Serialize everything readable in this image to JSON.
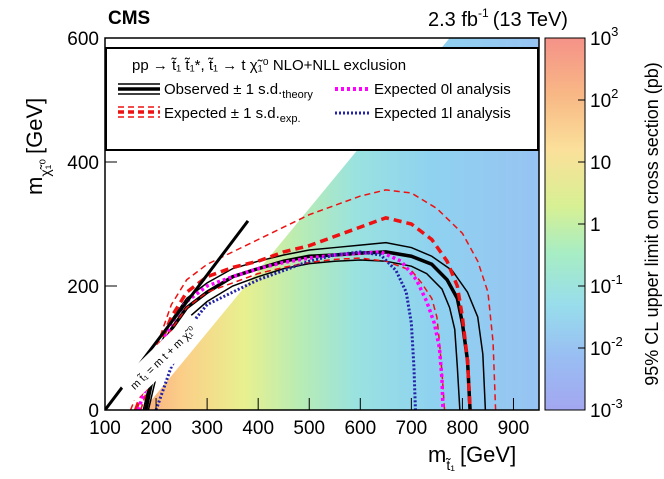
{
  "chart_data": {
    "type": "heatmap",
    "experiment": "CMS",
    "lumi_prefix": "2.3 fb",
    "lumi_exp": "-1",
    "lumi_suffix": "(13 TeV)",
    "xlabel": "m",
    "xlabel_sub": "t̃₁",
    "xlabel_unit": "[GeV]",
    "ylabel": "m",
    "ylabel_sub": "χ̃₁⁰",
    "ylabel_unit": "[GeV]",
    "xlim": [
      100,
      950
    ],
    "ylim": [
      0,
      600
    ],
    "xticks": [
      "100",
      "200",
      "300",
      "400",
      "500",
      "600",
      "700",
      "800",
      "900"
    ],
    "yticks": [
      "0",
      "200",
      "400",
      "600"
    ],
    "zlabel": "95% CL upper limit on cross section (pb)",
    "zscale": "log",
    "zlim": [
      0.001,
      1000
    ],
    "zticks": [
      {
        "base": "10",
        "exp": "3"
      },
      {
        "base": "10",
        "exp": "2"
      },
      {
        "base": "10",
        "exp": ""
      },
      {
        "base": "1",
        "exp": ""
      },
      {
        "base": "10",
        "exp": "-1"
      },
      {
        "base": "10",
        "exp": "-2"
      },
      {
        "base": "10",
        "exp": "-3"
      }
    ],
    "diagonal_label": "m t̃₁ = m t + m χ̃₁⁰",
    "legend_title": "pp → t̃₁ t̃₁*, t̃₁ → t χ̃₁⁰  NLO+NLL exclusion",
    "legend": [
      {
        "label": "Observed ± 1 s.d.",
        "sub": "theory",
        "color": "#000000"
      },
      {
        "label": "Expected 0l analysis",
        "sub": "",
        "color": "#ff00ff"
      },
      {
        "label": "Expected ± 1 s.d.",
        "sub": "exp.",
        "color": "#ee1111"
      },
      {
        "label": "Expected 1l analysis",
        "sub": "",
        "color": "#2222aa"
      }
    ],
    "series": [
      {
        "name": "Observed",
        "x": [
          180,
          200,
          230,
          260,
          300,
          350,
          400,
          450,
          500,
          550,
          600,
          650,
          700,
          740,
          770,
          790,
          800,
          810,
          815
        ],
        "y": [
          0,
          80,
          130,
          165,
          190,
          215,
          228,
          240,
          248,
          250,
          253,
          255,
          248,
          235,
          210,
          180,
          140,
          80,
          0
        ]
      },
      {
        "name": "Observed +1 s.d.",
        "x": [
          175,
          200,
          230,
          260,
          300,
          350,
          400,
          450,
          500,
          550,
          600,
          650,
          700,
          740,
          780,
          810,
          830,
          840,
          845
        ],
        "y": [
          0,
          90,
          145,
          180,
          205,
          228,
          240,
          250,
          258,
          262,
          266,
          270,
          262,
          248,
          225,
          190,
          150,
          90,
          0
        ]
      },
      {
        "name": "Observed -1 s.d.",
        "x": [
          185,
          205,
          235,
          265,
          300,
          350,
          400,
          450,
          500,
          550,
          600,
          650,
          700,
          730,
          760,
          775,
          785,
          790,
          795
        ],
        "y": [
          0,
          70,
          115,
          150,
          175,
          200,
          215,
          228,
          236,
          240,
          242,
          240,
          232,
          220,
          195,
          165,
          130,
          70,
          0
        ]
      },
      {
        "name": "Expected",
        "x": [
          160,
          200,
          230,
          260,
          300,
          350,
          400,
          450,
          500,
          550,
          600,
          650,
          700,
          740,
          770,
          790,
          800,
          810,
          815
        ],
        "y": [
          0,
          90,
          150,
          190,
          215,
          230,
          240,
          255,
          265,
          280,
          295,
          310,
          300,
          275,
          240,
          200,
          150,
          80,
          0
        ]
      },
      {
        "name": "Expected +1 s.d.",
        "x": [
          150,
          200,
          230,
          260,
          300,
          350,
          400,
          450,
          500,
          550,
          600,
          650,
          700,
          750,
          800,
          830,
          850,
          860,
          865
        ],
        "y": [
          0,
          100,
          170,
          210,
          235,
          255,
          275,
          295,
          315,
          330,
          345,
          355,
          350,
          325,
          285,
          240,
          190,
          110,
          0
        ]
      },
      {
        "name": "Expected -1 s.d.",
        "x": [
          170,
          200,
          230,
          260,
          300,
          350,
          400,
          450,
          500,
          550,
          600,
          650,
          700,
          720,
          740,
          750,
          755,
          760,
          765
        ],
        "y": [
          0,
          80,
          130,
          165,
          190,
          205,
          220,
          230,
          238,
          243,
          245,
          240,
          225,
          205,
          180,
          150,
          110,
          60,
          0
        ]
      },
      {
        "name": "Expected 0l analysis",
        "x": [
          165,
          200,
          230,
          260,
          300,
          350,
          400,
          450,
          500,
          550,
          600,
          640,
          680,
          710,
          730,
          745,
          755,
          760,
          762
        ],
        "y": [
          0,
          85,
          140,
          175,
          200,
          215,
          228,
          238,
          245,
          250,
          253,
          255,
          240,
          210,
          175,
          140,
          100,
          50,
          0
        ]
      },
      {
        "name": "Expected 1l analysis",
        "x": [
          200,
          230,
          260,
          280,
          300,
          350,
          400,
          450,
          500,
          550,
          600,
          640,
          670,
          690,
          700,
          705,
          708
        ],
        "y": [
          0,
          70,
          120,
          150,
          170,
          190,
          210,
          225,
          240,
          250,
          255,
          250,
          225,
          190,
          140,
          70,
          0
        ]
      }
    ]
  }
}
